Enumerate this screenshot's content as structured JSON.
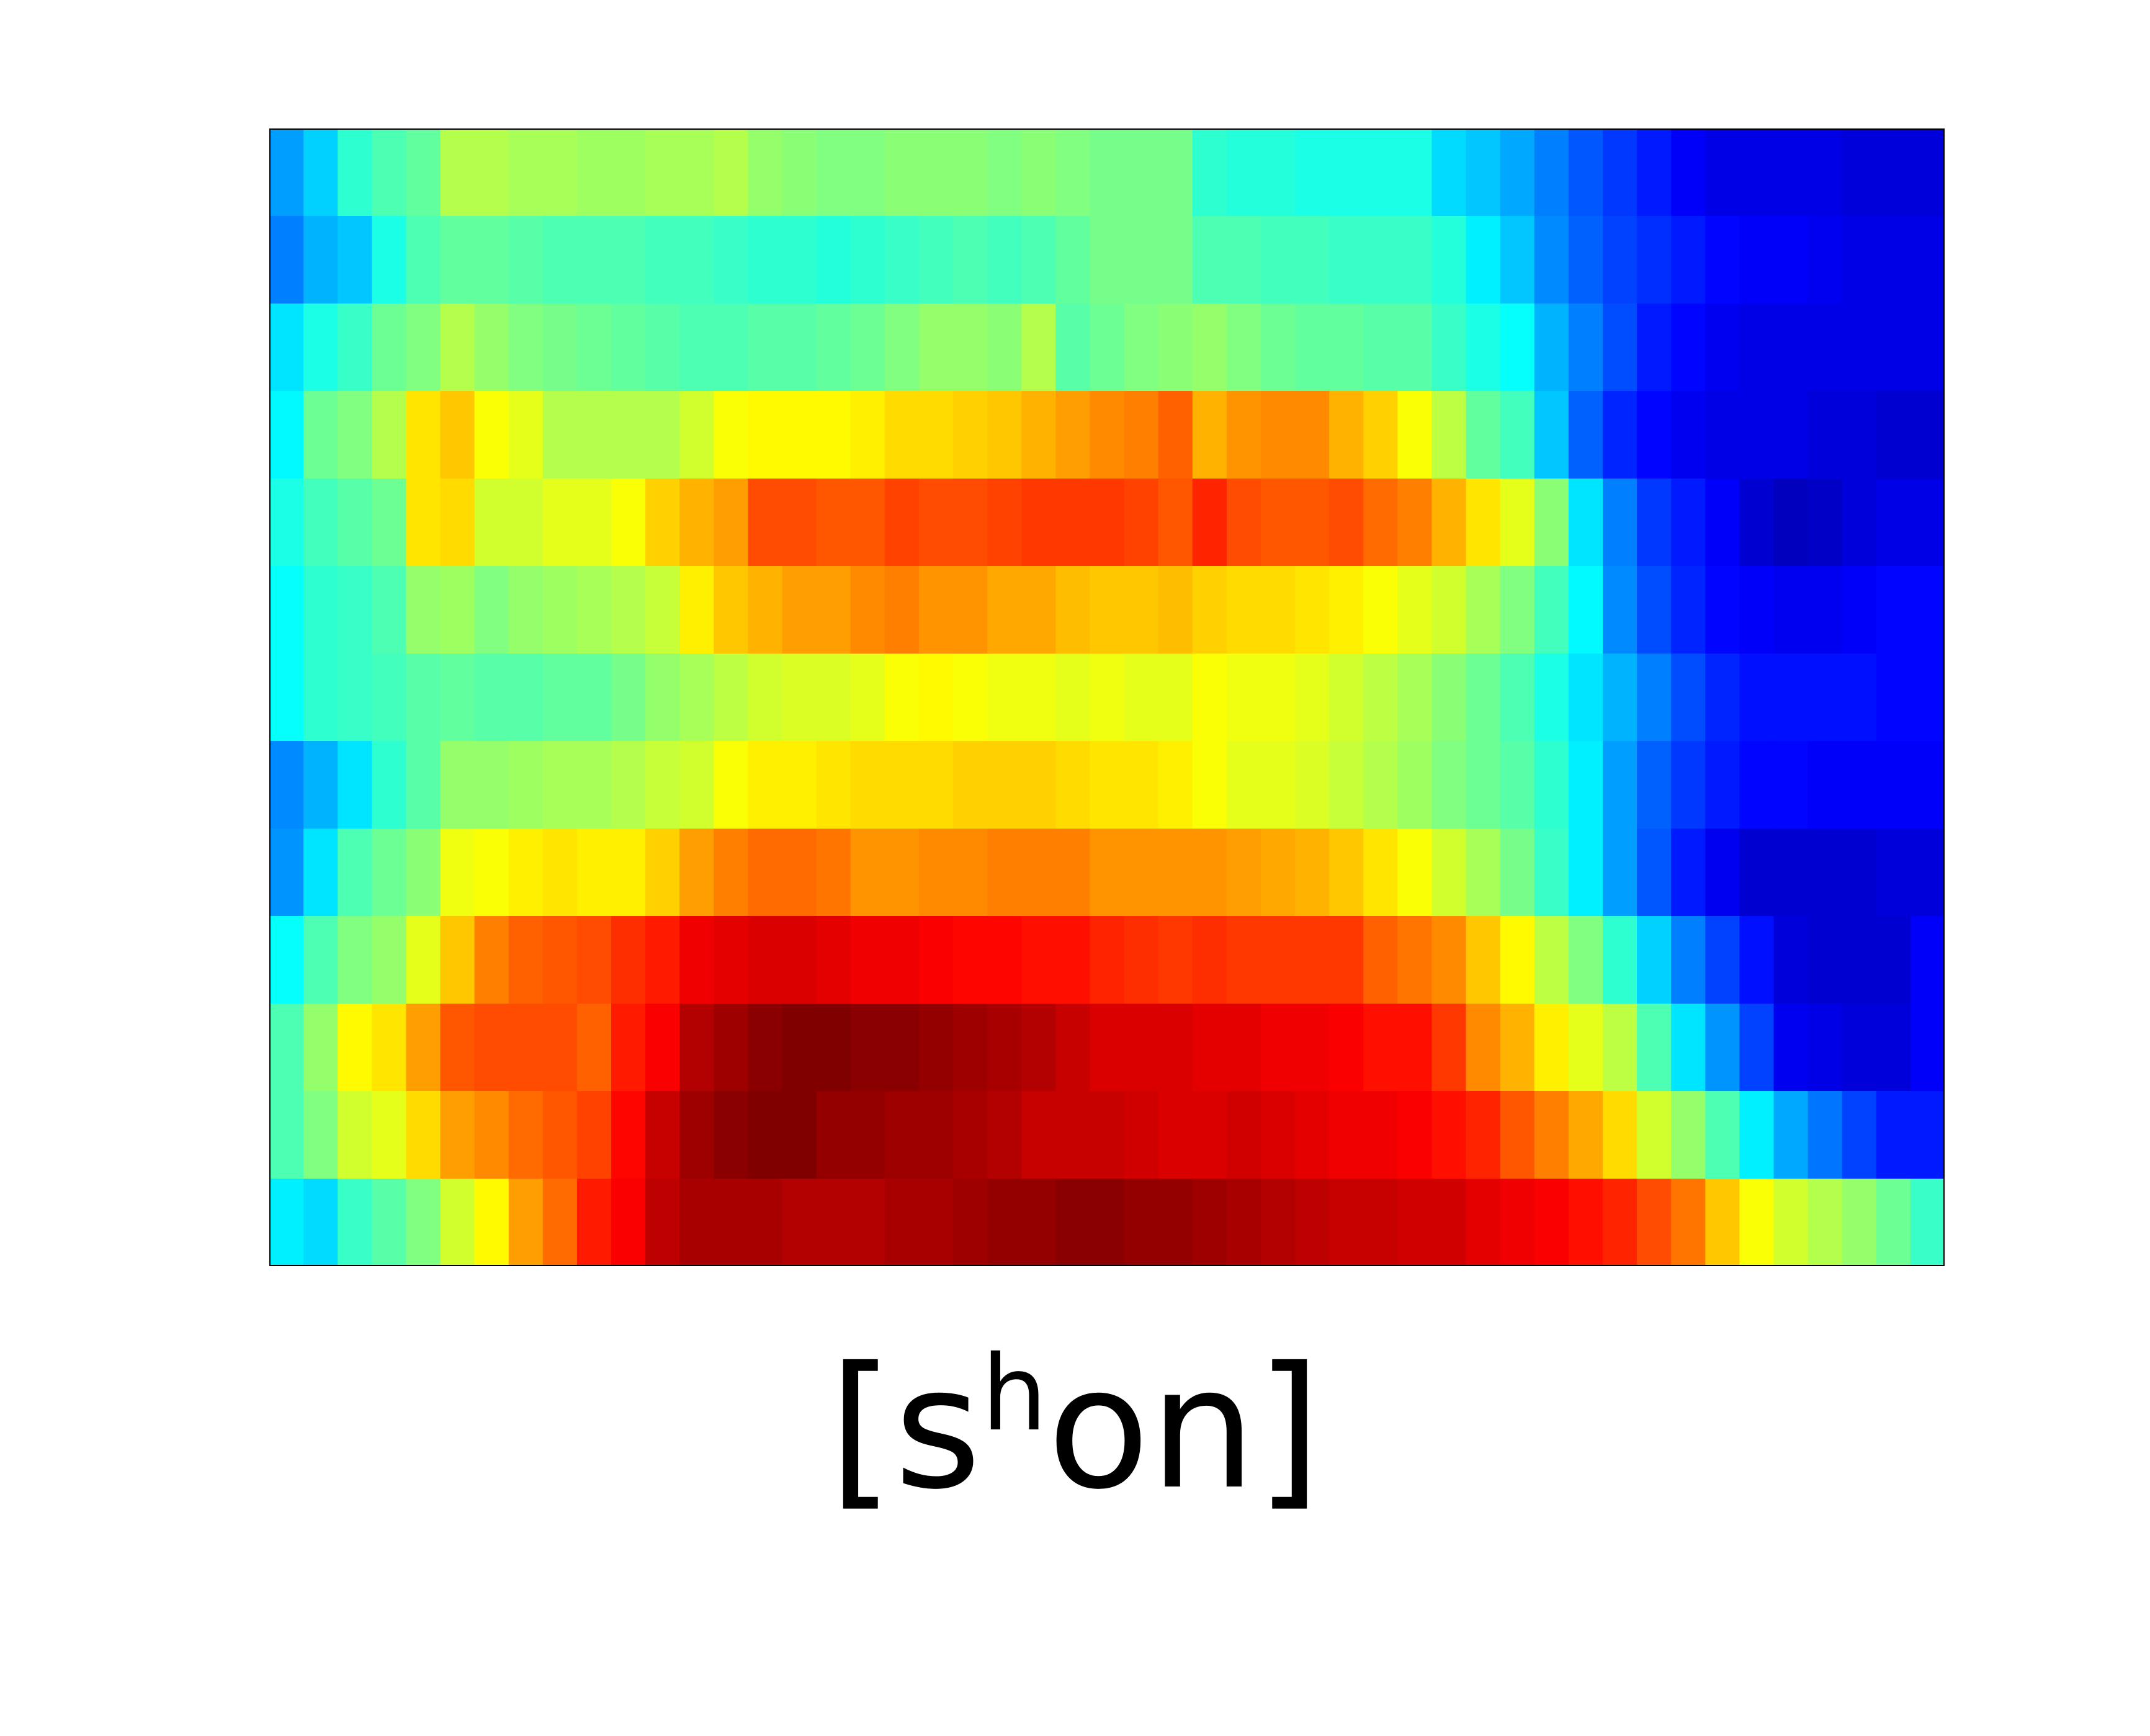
{
  "chart_data": {
    "type": "heatmap",
    "colormap": "jet",
    "zlim": [
      0,
      1
    ],
    "grid": false,
    "legend": "none",
    "frame_color": "#000000",
    "caption": {
      "prefix": "[s",
      "superscript": "h",
      "suffix": "on]"
    },
    "rows": [
      [
        0.28,
        0.33,
        0.42,
        0.45,
        0.47,
        0.55,
        0.55,
        0.54,
        0.54,
        0.53,
        0.53,
        0.54,
        0.54,
        0.55,
        0.52,
        0.51,
        0.5,
        0.5,
        0.51,
        0.51,
        0.51,
        0.5,
        0.51,
        0.5,
        0.49,
        0.49,
        0.49,
        0.42,
        0.41,
        0.41,
        0.4,
        0.4,
        0.4,
        0.4,
        0.34,
        0.32,
        0.29,
        0.25,
        0.21,
        0.18,
        0.15,
        0.12,
        0.1,
        0.1,
        0.1,
        0.1,
        0.09,
        0.09,
        0.09
      ],
      [
        0.25,
        0.3,
        0.32,
        0.4,
        0.45,
        0.47,
        0.47,
        0.46,
        0.45,
        0.45,
        0.45,
        0.44,
        0.44,
        0.43,
        0.42,
        0.42,
        0.41,
        0.42,
        0.43,
        0.44,
        0.45,
        0.44,
        0.45,
        0.47,
        0.49,
        0.49,
        0.49,
        0.45,
        0.45,
        0.44,
        0.44,
        0.43,
        0.43,
        0.43,
        0.41,
        0.36,
        0.32,
        0.26,
        0.22,
        0.19,
        0.17,
        0.15,
        0.13,
        0.12,
        0.12,
        0.11,
        0.1,
        0.1,
        0.1
      ],
      [
        0.35,
        0.4,
        0.43,
        0.48,
        0.5,
        0.55,
        0.52,
        0.5,
        0.49,
        0.48,
        0.47,
        0.46,
        0.45,
        0.45,
        0.46,
        0.46,
        0.47,
        0.48,
        0.5,
        0.52,
        0.52,
        0.51,
        0.55,
        0.46,
        0.48,
        0.5,
        0.51,
        0.52,
        0.5,
        0.48,
        0.47,
        0.47,
        0.46,
        0.46,
        0.43,
        0.4,
        0.38,
        0.3,
        0.25,
        0.2,
        0.15,
        0.13,
        0.11,
        0.1,
        0.1,
        0.1,
        0.1,
        0.1,
        0.1
      ],
      [
        0.37,
        0.48,
        0.5,
        0.55,
        0.65,
        0.68,
        0.62,
        0.6,
        0.55,
        0.55,
        0.55,
        0.55,
        0.58,
        0.62,
        0.63,
        0.63,
        0.63,
        0.64,
        0.66,
        0.66,
        0.67,
        0.68,
        0.7,
        0.72,
        0.74,
        0.75,
        0.78,
        0.7,
        0.73,
        0.74,
        0.74,
        0.7,
        0.67,
        0.62,
        0.56,
        0.47,
        0.44,
        0.32,
        0.22,
        0.16,
        0.13,
        0.11,
        0.1,
        0.1,
        0.1,
        0.09,
        0.09,
        0.08,
        0.08
      ],
      [
        0.4,
        0.44,
        0.46,
        0.48,
        0.65,
        0.66,
        0.58,
        0.58,
        0.6,
        0.6,
        0.62,
        0.67,
        0.7,
        0.72,
        0.8,
        0.8,
        0.79,
        0.79,
        0.81,
        0.8,
        0.8,
        0.81,
        0.82,
        0.82,
        0.82,
        0.81,
        0.79,
        0.84,
        0.8,
        0.79,
        0.79,
        0.8,
        0.77,
        0.75,
        0.7,
        0.65,
        0.6,
        0.51,
        0.35,
        0.25,
        0.18,
        0.15,
        0.12,
        0.08,
        0.06,
        0.07,
        0.09,
        0.1,
        0.1
      ],
      [
        0.38,
        0.42,
        0.43,
        0.45,
        0.52,
        0.53,
        0.5,
        0.52,
        0.53,
        0.54,
        0.55,
        0.57,
        0.64,
        0.68,
        0.7,
        0.72,
        0.72,
        0.74,
        0.75,
        0.73,
        0.73,
        0.71,
        0.71,
        0.69,
        0.68,
        0.68,
        0.69,
        0.67,
        0.66,
        0.66,
        0.65,
        0.64,
        0.62,
        0.6,
        0.58,
        0.54,
        0.5,
        0.44,
        0.37,
        0.26,
        0.2,
        0.16,
        0.13,
        0.12,
        0.11,
        0.11,
        0.12,
        0.13,
        0.13
      ],
      [
        0.38,
        0.42,
        0.43,
        0.44,
        0.46,
        0.47,
        0.46,
        0.46,
        0.47,
        0.47,
        0.49,
        0.52,
        0.54,
        0.56,
        0.58,
        0.59,
        0.59,
        0.6,
        0.62,
        0.63,
        0.62,
        0.61,
        0.61,
        0.6,
        0.61,
        0.6,
        0.6,
        0.62,
        0.61,
        0.61,
        0.6,
        0.58,
        0.56,
        0.54,
        0.51,
        0.48,
        0.45,
        0.4,
        0.35,
        0.3,
        0.25,
        0.2,
        0.16,
        0.14,
        0.14,
        0.14,
        0.14,
        0.13,
        0.13
      ],
      [
        0.26,
        0.3,
        0.35,
        0.42,
        0.46,
        0.52,
        0.52,
        0.53,
        0.54,
        0.54,
        0.55,
        0.57,
        0.58,
        0.62,
        0.64,
        0.64,
        0.65,
        0.66,
        0.66,
        0.66,
        0.67,
        0.67,
        0.67,
        0.66,
        0.65,
        0.65,
        0.64,
        0.62,
        0.6,
        0.6,
        0.59,
        0.57,
        0.55,
        0.53,
        0.5,
        0.48,
        0.46,
        0.42,
        0.36,
        0.28,
        0.22,
        0.18,
        0.15,
        0.13,
        0.13,
        0.12,
        0.12,
        0.12,
        0.12
      ],
      [
        0.27,
        0.35,
        0.45,
        0.48,
        0.51,
        0.61,
        0.62,
        0.64,
        0.65,
        0.64,
        0.64,
        0.67,
        0.72,
        0.75,
        0.77,
        0.77,
        0.76,
        0.73,
        0.73,
        0.74,
        0.74,
        0.75,
        0.75,
        0.75,
        0.73,
        0.73,
        0.73,
        0.73,
        0.72,
        0.71,
        0.7,
        0.68,
        0.65,
        0.62,
        0.58,
        0.54,
        0.49,
        0.43,
        0.36,
        0.28,
        0.21,
        0.15,
        0.11,
        0.08,
        0.08,
        0.08,
        0.08,
        0.09,
        0.09
      ],
      [
        0.38,
        0.45,
        0.5,
        0.52,
        0.6,
        0.68,
        0.75,
        0.78,
        0.79,
        0.8,
        0.83,
        0.85,
        0.89,
        0.9,
        0.91,
        0.91,
        0.9,
        0.89,
        0.89,
        0.88,
        0.87,
        0.87,
        0.86,
        0.86,
        0.84,
        0.83,
        0.82,
        0.83,
        0.82,
        0.82,
        0.82,
        0.82,
        0.78,
        0.76,
        0.74,
        0.68,
        0.63,
        0.56,
        0.5,
        0.42,
        0.33,
        0.25,
        0.19,
        0.14,
        0.09,
        0.08,
        0.08,
        0.08,
        0.12
      ],
      [
        0.45,
        0.52,
        0.63,
        0.65,
        0.72,
        0.79,
        0.8,
        0.8,
        0.8,
        0.78,
        0.85,
        0.88,
        0.95,
        0.97,
        0.99,
        1.0,
        1.0,
        0.99,
        0.99,
        0.98,
        0.97,
        0.96,
        0.95,
        0.93,
        0.91,
        0.91,
        0.91,
        0.9,
        0.9,
        0.89,
        0.89,
        0.88,
        0.86,
        0.86,
        0.82,
        0.74,
        0.7,
        0.64,
        0.6,
        0.56,
        0.45,
        0.35,
        0.27,
        0.19,
        0.11,
        0.1,
        0.09,
        0.09,
        0.12
      ],
      [
        0.45,
        0.5,
        0.58,
        0.6,
        0.66,
        0.72,
        0.74,
        0.77,
        0.79,
        0.81,
        0.87,
        0.93,
        0.97,
        0.99,
        1.0,
        1.0,
        0.98,
        0.98,
        0.97,
        0.97,
        0.96,
        0.95,
        0.93,
        0.93,
        0.93,
        0.92,
        0.91,
        0.91,
        0.92,
        0.91,
        0.9,
        0.89,
        0.89,
        0.88,
        0.86,
        0.84,
        0.79,
        0.75,
        0.71,
        0.66,
        0.58,
        0.52,
        0.45,
        0.36,
        0.29,
        0.24,
        0.19,
        0.15,
        0.15
      ],
      [
        0.36,
        0.34,
        0.43,
        0.46,
        0.5,
        0.58,
        0.63,
        0.72,
        0.77,
        0.85,
        0.88,
        0.94,
        0.96,
        0.96,
        0.96,
        0.95,
        0.95,
        0.95,
        0.96,
        0.96,
        0.97,
        0.98,
        0.98,
        0.99,
        0.99,
        0.98,
        0.98,
        0.97,
        0.96,
        0.95,
        0.94,
        0.93,
        0.93,
        0.92,
        0.92,
        0.9,
        0.89,
        0.88,
        0.86,
        0.84,
        0.8,
        0.76,
        0.68,
        0.62,
        0.58,
        0.55,
        0.52,
        0.48,
        0.43
      ]
    ]
  }
}
